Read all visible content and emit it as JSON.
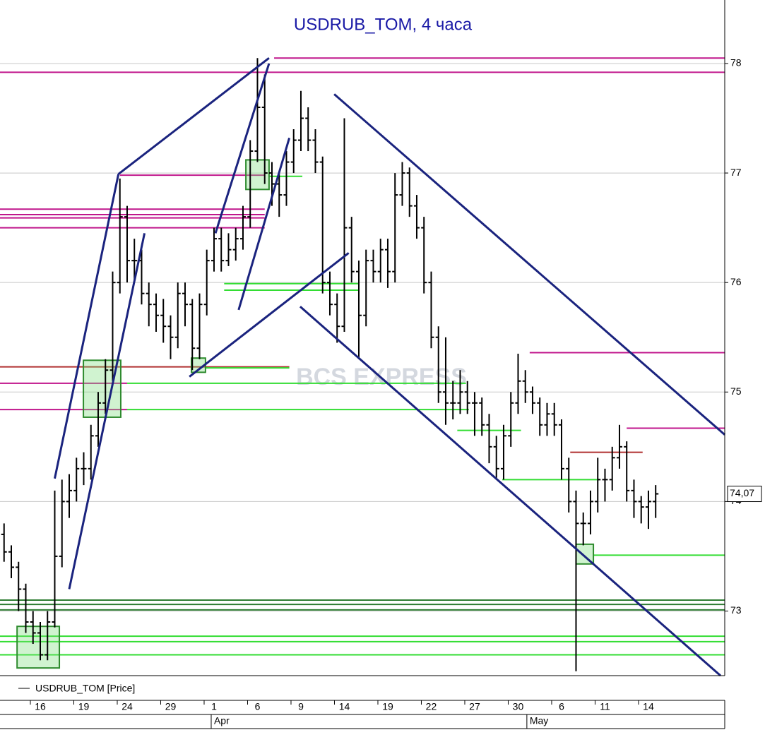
{
  "chart_data": {
    "type": "ohlc",
    "title": "USDRUB_TOM, 4 часа",
    "watermark": "BCS EXPRESS",
    "legend": "USDRUB_TOM [Price]",
    "last_price_label": "74,07",
    "color": "#000000",
    "xlim": [
      -2.78,
      47.27
    ],
    "ylim": [
      72.41,
      78.58
    ],
    "yticks": [
      73,
      74,
      75,
      76,
      77,
      78
    ],
    "grid": true,
    "xticks": [
      {
        "value": 0,
        "label": "16"
      },
      {
        "value": 3,
        "label": "19"
      },
      {
        "value": 6,
        "label": "24"
      },
      {
        "value": 9,
        "label": "29"
      },
      {
        "value": 12,
        "label": "1"
      },
      {
        "value": 15,
        "label": "6"
      },
      {
        "value": 18,
        "label": "9"
      },
      {
        "value": 21,
        "label": "14"
      },
      {
        "value": 24,
        "label": "19"
      },
      {
        "value": 27,
        "label": "22"
      },
      {
        "value": 30,
        "label": "27"
      },
      {
        "value": 33,
        "label": "30"
      },
      {
        "value": 36,
        "label": "6"
      },
      {
        "value": 39,
        "label": "11"
      },
      {
        "value": 42,
        "label": "14"
      }
    ],
    "month_ticks": [
      {
        "value": 12,
        "label": "Apr"
      },
      {
        "value": 33.8,
        "label": "May"
      }
    ],
    "x": [
      -2.5,
      -2,
      -1.5,
      -1,
      -0.5,
      0,
      0.5,
      1,
      1.5,
      2,
      2.5,
      3,
      3.5,
      4,
      4.5,
      5,
      5.5,
      6,
      6.5,
      7,
      7.5,
      8,
      8.5,
      9,
      9.5,
      10,
      10.5,
      11,
      11.5,
      12,
      12.5,
      13,
      13.5,
      14,
      14.5,
      15,
      15.5,
      16,
      16.5,
      17,
      17.5,
      18,
      18.5,
      19,
      19.5,
      20,
      20.5,
      21,
      21.5,
      22,
      22.5,
      23,
      23.5,
      24,
      24.5,
      25,
      25.5,
      26,
      26.5,
      27,
      27.5,
      28,
      28.5,
      29,
      29.5,
      30,
      30.5,
      31,
      31.5,
      32,
      32.5,
      33,
      33.5,
      34,
      34.5,
      35,
      35.5,
      36,
      36.5,
      37,
      37.5,
      38,
      38.5,
      39,
      39.5,
      40,
      40.5,
      41,
      41.5,
      42,
      42.5
    ],
    "ohlc": [
      [
        73.7,
        73.8,
        73.45,
        73.54
      ],
      [
        73.54,
        73.6,
        73.3,
        73.4
      ],
      [
        73.4,
        73.45,
        73.0,
        73.2
      ],
      [
        73.2,
        73.25,
        72.8,
        72.9
      ],
      [
        72.9,
        73.0,
        72.7,
        72.8
      ],
      [
        72.8,
        72.9,
        72.55,
        72.6
      ],
      [
        72.6,
        73.0,
        72.55,
        72.9
      ],
      [
        72.9,
        74.1,
        72.85,
        73.5
      ],
      [
        73.5,
        74.2,
        73.4,
        74.0
      ],
      [
        74.0,
        74.25,
        73.85,
        74.1
      ],
      [
        74.1,
        74.4,
        74.0,
        74.3
      ],
      [
        74.3,
        74.45,
        74.15,
        74.3
      ],
      [
        74.3,
        74.7,
        74.2,
        74.6
      ],
      [
        74.6,
        75.0,
        74.5,
        74.9
      ],
      [
        74.9,
        75.3,
        74.8,
        75.2
      ],
      [
        75.2,
        76.1,
        75.1,
        76.0
      ],
      [
        76.0,
        76.95,
        75.9,
        76.6
      ],
      [
        76.6,
        76.7,
        76.0,
        76.2
      ],
      [
        76.2,
        76.4,
        76.0,
        76.2
      ],
      [
        76.2,
        76.3,
        75.8,
        75.9
      ],
      [
        75.9,
        76.0,
        75.6,
        75.8
      ],
      [
        75.8,
        75.9,
        75.55,
        75.7
      ],
      [
        75.7,
        75.85,
        75.45,
        75.6
      ],
      [
        75.6,
        75.7,
        75.3,
        75.5
      ],
      [
        75.5,
        76.0,
        75.4,
        75.9
      ],
      [
        75.9,
        76.0,
        75.6,
        75.8
      ],
      [
        75.8,
        75.85,
        75.2,
        75.4
      ],
      [
        75.4,
        75.9,
        75.3,
        75.8
      ],
      [
        75.8,
        76.3,
        75.7,
        76.2
      ],
      [
        76.2,
        76.5,
        76.1,
        76.4
      ],
      [
        76.4,
        76.5,
        76.1,
        76.2
      ],
      [
        76.2,
        76.45,
        76.15,
        76.3
      ],
      [
        76.3,
        76.5,
        76.2,
        76.4
      ],
      [
        76.4,
        76.7,
        76.3,
        76.6
      ],
      [
        76.6,
        77.3,
        76.5,
        77.2
      ],
      [
        77.2,
        78.05,
        77.1,
        77.6
      ],
      [
        77.6,
        77.9,
        76.9,
        77.0
      ],
      [
        77.0,
        77.1,
        76.7,
        76.9
      ],
      [
        76.9,
        77.0,
        76.6,
        76.8
      ],
      [
        76.8,
        77.2,
        76.7,
        77.1
      ],
      [
        77.1,
        77.4,
        77.0,
        77.3
      ],
      [
        77.3,
        77.75,
        77.2,
        77.5
      ],
      [
        77.5,
        77.6,
        77.2,
        77.3
      ],
      [
        77.3,
        77.4,
        77.0,
        77.1
      ],
      [
        77.1,
        77.15,
        75.9,
        76.0
      ],
      [
        76.0,
        76.1,
        75.7,
        75.8
      ],
      [
        75.8,
        75.9,
        75.45,
        75.6
      ],
      [
        75.6,
        77.5,
        75.55,
        76.5
      ],
      [
        76.5,
        76.6,
        76.0,
        76.1
      ],
      [
        76.1,
        76.2,
        75.3,
        75.7
      ],
      [
        75.7,
        76.3,
        75.6,
        76.2
      ],
      [
        76.2,
        76.3,
        76.0,
        76.1
      ],
      [
        76.1,
        76.4,
        76.0,
        76.3
      ],
      [
        76.3,
        76.4,
        75.95,
        76.1
      ],
      [
        76.1,
        77.0,
        76.0,
        76.8
      ],
      [
        76.8,
        77.1,
        76.7,
        77.0
      ],
      [
        77.0,
        77.05,
        76.6,
        76.7
      ],
      [
        76.7,
        76.8,
        76.4,
        76.5
      ],
      [
        76.5,
        76.6,
        75.9,
        76.0
      ],
      [
        76.0,
        76.1,
        75.4,
        75.5
      ],
      [
        75.5,
        75.6,
        74.9,
        75.0
      ],
      [
        75.0,
        75.5,
        74.7,
        74.9
      ],
      [
        74.9,
        75.1,
        74.75,
        74.9
      ],
      [
        74.9,
        75.2,
        74.8,
        75.0
      ],
      [
        75.0,
        75.1,
        74.8,
        74.9
      ],
      [
        74.9,
        75.0,
        74.6,
        74.9
      ],
      [
        74.9,
        74.95,
        74.6,
        74.7
      ],
      [
        74.7,
        74.8,
        74.35,
        74.5
      ],
      [
        74.5,
        74.6,
        74.2,
        74.3
      ],
      [
        74.3,
        74.7,
        74.2,
        74.6
      ],
      [
        74.6,
        75.0,
        74.5,
        74.9
      ],
      [
        74.9,
        75.35,
        74.8,
        75.1
      ],
      [
        75.1,
        75.2,
        74.9,
        75.0
      ],
      [
        75.0,
        75.05,
        74.8,
        74.9
      ],
      [
        74.9,
        74.95,
        74.6,
        74.7
      ],
      [
        74.7,
        74.9,
        74.6,
        74.8
      ],
      [
        74.8,
        74.9,
        74.6,
        74.7
      ],
      [
        74.7,
        74.75,
        74.2,
        74.3
      ],
      [
        74.3,
        74.4,
        73.9,
        74.0
      ],
      [
        74.0,
        74.1,
        72.45,
        73.8
      ],
      [
        73.8,
        73.9,
        73.6,
        73.8
      ],
      [
        73.8,
        74.1,
        73.7,
        74.0
      ],
      [
        74.0,
        74.4,
        73.9,
        74.2
      ],
      [
        74.2,
        74.3,
        74.0,
        74.2
      ],
      [
        74.2,
        74.5,
        74.1,
        74.4
      ],
      [
        74.4,
        74.7,
        74.3,
        74.5
      ],
      [
        74.5,
        74.55,
        74.0,
        74.1
      ],
      [
        74.1,
        74.2,
        73.85,
        74.0
      ],
      [
        74.0,
        74.05,
        73.8,
        73.95
      ],
      [
        73.95,
        74.1,
        73.75,
        74.0
      ],
      [
        74.0,
        74.15,
        73.85,
        74.07
      ]
    ],
    "levels": [
      {
        "value": 78.05,
        "x0": 16.15,
        "x1": 47.27,
        "color": "#c0168c"
      },
      {
        "value": 77.92,
        "x0": -2.78,
        "x1": 47.27,
        "color": "#c0168c"
      },
      {
        "value": 76.98,
        "x0": 5.5,
        "x1": 15.5,
        "color": "#c0168c"
      },
      {
        "value": 76.67,
        "x0": -2.78,
        "x1": 15.5,
        "color": "#c0168c"
      },
      {
        "value": 76.62,
        "x0": -2.78,
        "x1": 15.5,
        "color": "#c0168c"
      },
      {
        "value": 76.59,
        "x0": -2.78,
        "x1": 15.5,
        "color": "#c0168c"
      },
      {
        "value": 76.5,
        "x0": -2.78,
        "x1": 15.5,
        "color": "#c0168c"
      },
      {
        "value": 75.23,
        "x0": -2.78,
        "x1": 17.2,
        "color": "#b03030"
      },
      {
        "value": 75.08,
        "x0": -2.78,
        "x1": 6,
        "color": "#c0168c"
      },
      {
        "value": 74.84,
        "x0": -2.78,
        "x1": 6,
        "color": "#c0168c"
      },
      {
        "value": 75.36,
        "x0": 33.8,
        "x1": 47.27,
        "color": "#c0168c"
      },
      {
        "value": 74.67,
        "x0": 40.5,
        "x1": 47.27,
        "color": "#c0168c"
      },
      {
        "value": 74.45,
        "x0": 36.6,
        "x1": 41.6,
        "color": "#b03030"
      },
      {
        "value": 75.99,
        "x0": 12.7,
        "x1": 21.95,
        "color": "#33dd33"
      },
      {
        "value": 75.93,
        "x0": 12.7,
        "x1": 21.95,
        "color": "#33dd33"
      },
      {
        "value": 76.97,
        "x0": 15.8,
        "x1": 18.1,
        "color": "#33dd33"
      },
      {
        "value": 75.08,
        "x0": 6,
        "x1": 29.4,
        "color": "#33dd33"
      },
      {
        "value": 74.84,
        "x0": 6,
        "x1": 29.6,
        "color": "#33dd33"
      },
      {
        "value": 75.22,
        "x0": 11.4,
        "x1": 17.2,
        "color": "#33dd33"
      },
      {
        "value": 74.65,
        "x0": 28.8,
        "x1": 33.2,
        "color": "#33dd33"
      },
      {
        "value": 74.2,
        "x0": 31.9,
        "x1": 38.6,
        "color": "#33dd33"
      },
      {
        "value": 73.51,
        "x0": 38.2,
        "x1": 47.27,
        "color": "#33dd33"
      },
      {
        "value": 73.1,
        "x0": -2.78,
        "x1": 47.27,
        "color": "#2e7d32"
      },
      {
        "value": 73.06,
        "x0": -2.78,
        "x1": 47.27,
        "color": "#2e7d32"
      },
      {
        "value": 73.01,
        "x0": -2.78,
        "x1": 47.27,
        "color": "#2e7d32"
      },
      {
        "value": 72.77,
        "x0": -2.78,
        "x1": 47.27,
        "color": "#33dd33"
      },
      {
        "value": 72.72,
        "x0": -2.78,
        "x1": 47.27,
        "color": "#33dd33"
      },
      {
        "value": 72.6,
        "x0": -2.78,
        "x1": 47.27,
        "color": "#33dd33"
      }
    ],
    "trendlines": [
      {
        "x": [
          5.4,
          15.8
        ],
        "y": [
          76.99,
          78.05
        ],
        "color": "#1a237e"
      },
      {
        "x": [
          1.0,
          5.4
        ],
        "y": [
          74.21,
          76.99
        ],
        "color": "#1a237e"
      },
      {
        "x": [
          2.0,
          7.2
        ],
        "y": [
          73.2,
          76.45
        ],
        "color": "#1a237e"
      },
      {
        "x": [
          12.1,
          15.8
        ],
        "y": [
          76.45,
          78.0
        ],
        "color": "#1a237e"
      },
      {
        "x": [
          13.7,
          17.2
        ],
        "y": [
          75.75,
          77.32
        ],
        "color": "#1a237e"
      },
      {
        "x": [
          10.3,
          21.3
        ],
        "y": [
          75.14,
          76.27
        ],
        "color": "#1a237e"
      },
      {
        "x": [
          20.3,
          47.27
        ],
        "y": [
          77.72,
          74.61
        ],
        "color": "#1a237e"
      },
      {
        "x": [
          17.95,
          46.98
        ],
        "y": [
          75.78,
          72.41
        ],
        "color": "#1a237e"
      }
    ],
    "zones": [
      {
        "x": [
          -1.6,
          1.32
        ],
        "y": [
          72.48,
          72.86
        ],
        "color": "#2e8b2e"
      },
      {
        "x": [
          2.98,
          5.56
        ],
        "y": [
          74.77,
          75.29
        ],
        "color": "#2e8b2e"
      },
      {
        "x": [
          14.2,
          15.8
        ],
        "y": [
          76.85,
          77.12
        ],
        "color": "#2e8b2e"
      },
      {
        "x": [
          10.44,
          11.41
        ],
        "y": [
          75.18,
          75.31
        ],
        "color": "#2e8b2e"
      },
      {
        "x": [
          37.0,
          38.2
        ],
        "y": [
          73.43,
          73.61
        ],
        "color": "#2e8b2e"
      }
    ]
  }
}
